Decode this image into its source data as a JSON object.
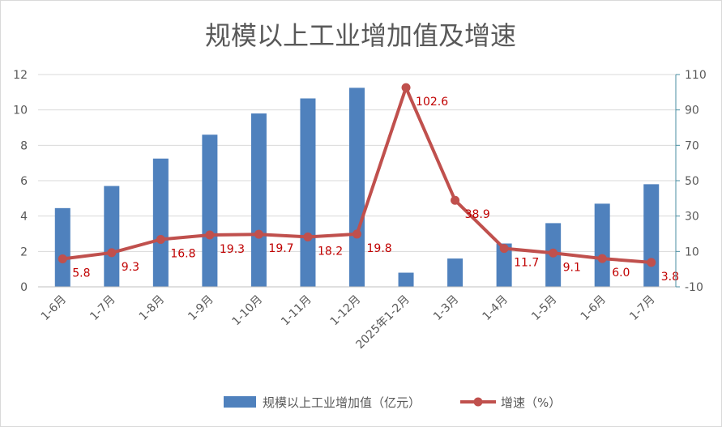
{
  "chart_data": {
    "type": "bar+line",
    "title": "规模以上工业增加值及增速",
    "categories": [
      "1-6月",
      "1-7月",
      "1-8月",
      "1-9月",
      "1-10月",
      "1-11月",
      "1-12月",
      "2025年1-2月",
      "1-3月",
      "1-4月",
      "1-5月",
      "1-6月",
      "1-7月"
    ],
    "series": [
      {
        "name": "规模以上工业增加值（亿元）",
        "type": "bar",
        "axis": "left",
        "color": "#4f81bd",
        "values": [
          4.45,
          5.7,
          7.25,
          8.6,
          9.8,
          10.65,
          11.25,
          0.8,
          1.6,
          2.45,
          3.6,
          4.7,
          5.8
        ]
      },
      {
        "name": "增速（%）",
        "type": "line",
        "axis": "right",
        "color": "#c0504d",
        "values": [
          5.8,
          9.3,
          16.8,
          19.3,
          19.7,
          18.2,
          19.8,
          102.6,
          38.9,
          11.7,
          9.1,
          6.0,
          3.8
        ],
        "labels": [
          "5.8",
          "9.3",
          "16.8",
          "19.3",
          "19.7",
          "18.2",
          "19.8",
          "102.6",
          "38.9",
          "11.7",
          "9.1",
          "6.0",
          "3.8"
        ]
      }
    ],
    "y_left": {
      "min": 0,
      "max": 12,
      "ticks": [
        "0",
        "2",
        "4",
        "6",
        "8",
        "10",
        "12"
      ]
    },
    "y_right": {
      "min": -10,
      "max": 110,
      "ticks": [
        "-10",
        "10",
        "30",
        "50",
        "70",
        "90",
        "110"
      ]
    },
    "grid": true,
    "legend_position": "bottom",
    "label_color": "#c00000"
  }
}
